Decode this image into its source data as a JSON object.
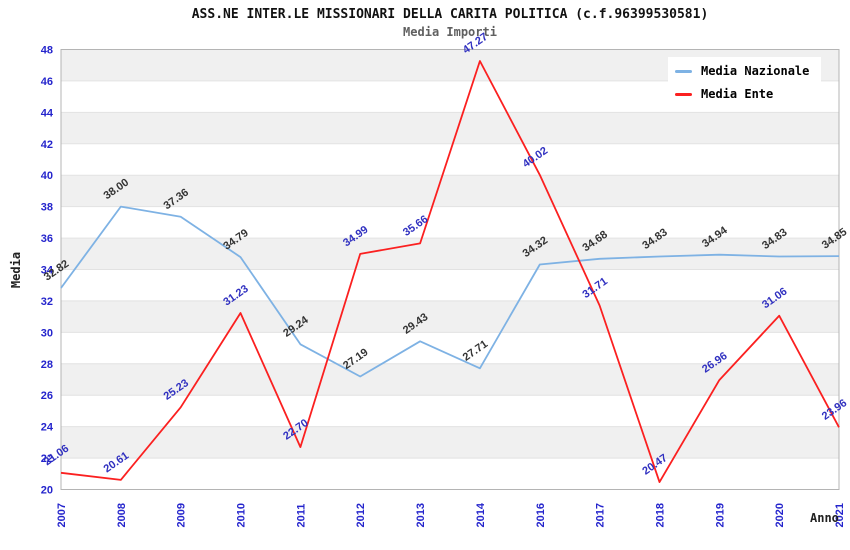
{
  "chart_data": {
    "type": "line",
    "title": "ASS.NE INTER.LE MISSIONARI DELLA CARITA POLITICA (c.f.96399530581)",
    "subtitle": "Media Importi",
    "xlabel": "Anno",
    "ylabel": "Media",
    "categories": [
      "2007",
      "2008",
      "2009",
      "2010",
      "2011",
      "2012",
      "2013",
      "2014",
      "2016",
      "2017",
      "2018",
      "2019",
      "2020",
      "2021"
    ],
    "series": [
      {
        "name": "Media Nazionale",
        "color": "#7eb2e4",
        "label_color": "#333333",
        "values": [
          32.82,
          38.0,
          37.36,
          34.79,
          29.24,
          27.19,
          29.43,
          27.71,
          34.32,
          34.68,
          34.83,
          34.94,
          34.83,
          34.85
        ]
      },
      {
        "name": "Media Ente",
        "color": "#fb2020",
        "label_color": "#3030c0",
        "values": [
          21.06,
          20.61,
          25.23,
          31.23,
          22.7,
          34.99,
          35.66,
          47.27,
          40.02,
          31.71,
          20.47,
          26.96,
          31.06,
          23.96
        ]
      }
    ],
    "ylim": [
      20,
      48
    ],
    "ytick_step": 2,
    "yticks": [
      20,
      22,
      24,
      26,
      28,
      30,
      32,
      34,
      36,
      38,
      40,
      42,
      44,
      46,
      48
    ],
    "legend_position": "top-right",
    "grid": "alternating-horizontal-bands",
    "band_color": "#f0f0f0",
    "grid_line_color": "#e2e2e2",
    "plot_border_color": "#b4b4b4",
    "tick_label_color": "#2424cc",
    "data_labels": true
  }
}
